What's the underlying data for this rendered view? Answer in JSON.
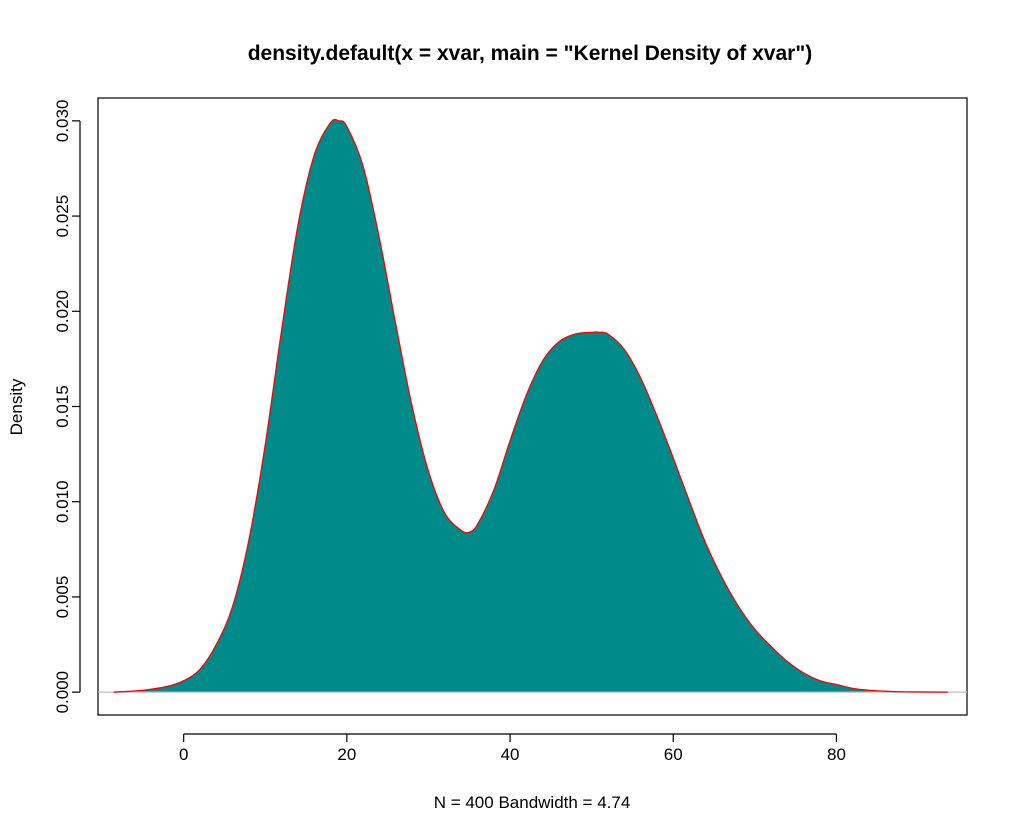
{
  "chart_data": {
    "type": "area",
    "title": "density.default(x = xvar, main = \"Kernel Density of xvar\")",
    "xlabel": "N = 400   Bandwidth = 4.74",
    "ylabel": "Density",
    "xlim": [
      -10.5,
      96
    ],
    "ylim": [
      -0.0012,
      0.0312
    ],
    "x_ticks": [
      0,
      20,
      40,
      60,
      80
    ],
    "x_tick_labels": [
      "0",
      "20",
      "40",
      "60",
      "80"
    ],
    "y_ticks": [
      0.0,
      0.005,
      0.01,
      0.015,
      0.02,
      0.025,
      0.03
    ],
    "y_tick_labels": [
      "0.000",
      "0.005",
      "0.010",
      "0.015",
      "0.020",
      "0.025",
      "0.030"
    ],
    "grid": false,
    "legend": "none",
    "fill_color": "#008B8B",
    "line_color": "#FF0000",
    "baseline_color": "#BEBEBE",
    "series": [
      {
        "x": [
          -8.6,
          -5,
          -2,
          0,
          2,
          4,
          6,
          8,
          10,
          12,
          14,
          16,
          18,
          19,
          20,
          22,
          24,
          26,
          28,
          30,
          32,
          34,
          35,
          36,
          38,
          40,
          42,
          44,
          46,
          48,
          50,
          51,
          52,
          54,
          56,
          58,
          60,
          62,
          64,
          66,
          68,
          70,
          72,
          74,
          76,
          78,
          80,
          82,
          84,
          86,
          88,
          90,
          93.7
        ],
        "y": [
          0.0,
          0.0001,
          0.0003,
          0.0006,
          0.0012,
          0.0025,
          0.0045,
          0.008,
          0.013,
          0.019,
          0.0245,
          0.0282,
          0.0299,
          0.03,
          0.0297,
          0.0276,
          0.0238,
          0.0193,
          0.015,
          0.0116,
          0.0094,
          0.0085,
          0.0084,
          0.0088,
          0.0106,
          0.0132,
          0.0156,
          0.0174,
          0.0184,
          0.0188,
          0.0189,
          0.0189,
          0.0188,
          0.018,
          0.0165,
          0.0145,
          0.0123,
          0.01,
          0.0078,
          0.006,
          0.0045,
          0.0033,
          0.0024,
          0.0016,
          0.001,
          0.0006,
          0.0004,
          0.0002,
          0.0001,
          5e-05,
          2e-05,
          1e-05,
          0.0
        ]
      }
    ]
  }
}
